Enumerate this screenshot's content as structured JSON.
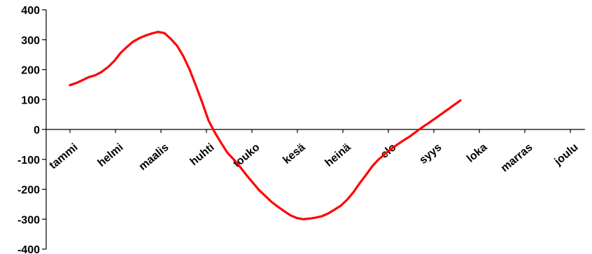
{
  "chart_data": {
    "type": "line",
    "title": "",
    "xlabel": "",
    "ylabel": "",
    "ylim": [
      -400,
      400
    ],
    "yticks": [
      400,
      300,
      200,
      100,
      0,
      -100,
      -200,
      -300,
      -400
    ],
    "grid": false,
    "legend": "none",
    "categories": [
      "tammi",
      "helmi",
      "maalis",
      "huhti",
      "touko",
      "kesä",
      "heinä",
      "elo",
      "syys",
      "loka",
      "marras",
      "joulu"
    ],
    "series": [
      {
        "color": "#ff0000",
        "points": [
          {
            "x": 0.0,
            "y": 148
          },
          {
            "x": 0.25,
            "y": 155
          },
          {
            "x": 0.5,
            "y": 165
          },
          {
            "x": 0.75,
            "y": 175
          },
          {
            "x": 1.0,
            "y": 181
          },
          {
            "x": 1.25,
            "y": 192
          },
          {
            "x": 1.5,
            "y": 208
          },
          {
            "x": 1.75,
            "y": 228
          },
          {
            "x": 2.0,
            "y": 255
          },
          {
            "x": 2.25,
            "y": 275
          },
          {
            "x": 2.5,
            "y": 293
          },
          {
            "x": 2.75,
            "y": 305
          },
          {
            "x": 3.0,
            "y": 314
          },
          {
            "x": 3.25,
            "y": 321
          },
          {
            "x": 3.5,
            "y": 326
          },
          {
            "x": 3.75,
            "y": 322
          },
          {
            "x": 4.0,
            "y": 303
          },
          {
            "x": 4.25,
            "y": 280
          },
          {
            "x": 4.5,
            "y": 245
          },
          {
            "x": 4.75,
            "y": 200
          },
          {
            "x": 5.0,
            "y": 146
          },
          {
            "x": 5.25,
            "y": 90
          },
          {
            "x": 5.5,
            "y": 30
          },
          {
            "x": 5.75,
            "y": -10
          },
          {
            "x": 6.0,
            "y": -45
          },
          {
            "x": 6.25,
            "y": -78
          },
          {
            "x": 6.5,
            "y": -100
          },
          {
            "x": 6.75,
            "y": -125
          },
          {
            "x": 7.0,
            "y": -152
          },
          {
            "x": 7.25,
            "y": -177
          },
          {
            "x": 7.5,
            "y": -202
          },
          {
            "x": 7.75,
            "y": -222
          },
          {
            "x": 8.0,
            "y": -242
          },
          {
            "x": 8.25,
            "y": -258
          },
          {
            "x": 8.5,
            "y": -273
          },
          {
            "x": 8.75,
            "y": -287
          },
          {
            "x": 9.0,
            "y": -296
          },
          {
            "x": 9.25,
            "y": -300
          },
          {
            "x": 9.5,
            "y": -298
          },
          {
            "x": 9.75,
            "y": -295
          },
          {
            "x": 10.0,
            "y": -290
          },
          {
            "x": 10.25,
            "y": -281
          },
          {
            "x": 10.5,
            "y": -268
          },
          {
            "x": 10.75,
            "y": -255
          },
          {
            "x": 11.0,
            "y": -235
          },
          {
            "x": 11.25,
            "y": -210
          },
          {
            "x": 11.5,
            "y": -180
          },
          {
            "x": 11.75,
            "y": -152
          },
          {
            "x": 12.0,
            "y": -123
          },
          {
            "x": 12.25,
            "y": -100
          },
          {
            "x": 12.5,
            "y": -82
          },
          {
            "x": 12.75,
            "y": -65
          },
          {
            "x": 13.0,
            "y": -50
          },
          {
            "x": 13.25,
            "y": -36
          },
          {
            "x": 13.5,
            "y": -23
          },
          {
            "x": 13.75,
            "y": -7
          },
          {
            "x": 14.0,
            "y": 8
          },
          {
            "x": 14.25,
            "y": 22
          },
          {
            "x": 14.5,
            "y": 37
          },
          {
            "x": 14.75,
            "y": 52
          },
          {
            "x": 15.0,
            "y": 67
          },
          {
            "x": 15.25,
            "y": 82
          },
          {
            "x": 15.5,
            "y": 97
          }
        ]
      }
    ]
  }
}
